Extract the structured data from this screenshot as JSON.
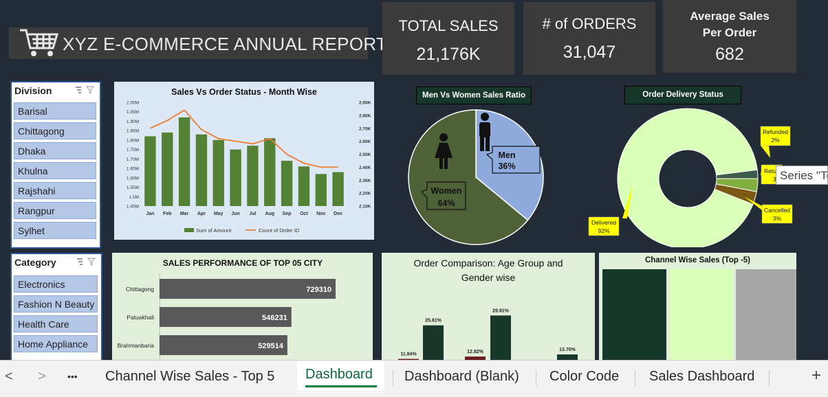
{
  "report": {
    "title": "XYZ E-COMMERCE ANNUAL REPORT",
    "icon": "shopping-cart-icon"
  },
  "kpis": [
    {
      "label": "TOTAL SALES",
      "value": "21,176K"
    },
    {
      "label": "# of ORDERS",
      "value": "31,047"
    },
    {
      "label_line1": "Average Sales",
      "label_line2": "Per Order",
      "value": "682"
    }
  ],
  "slicers": {
    "division": {
      "title": "Division",
      "items": [
        "Barisal",
        "Chittagong",
        "Dhaka",
        "Khulna",
        "Rajshahi",
        "Rangpur",
        "Sylhet"
      ]
    },
    "category": {
      "title": "Category",
      "items": [
        "Electronics",
        "Fashion N Beauty",
        "Health Care",
        "Home Appliance"
      ]
    }
  },
  "chart_data": [
    {
      "type": "bar",
      "title": "Sales Vs Order Status - Month Wise",
      "categories": [
        "Jan",
        "Feb",
        "Mar",
        "Apr",
        "May",
        "Jun",
        "Jul",
        "Aug",
        "Sep",
        "Oct",
        "Nov",
        "Dec"
      ],
      "series": [
        {
          "name": "Sum of Amount",
          "type": "bar",
          "axis": "left",
          "values": [
            1.82,
            1.84,
            1.92,
            1.83,
            1.8,
            1.75,
            1.77,
            1.81,
            1.69,
            1.66,
            1.62,
            1.63
          ]
        },
        {
          "name": "Count of Order ID",
          "type": "line",
          "axis": "right",
          "values": [
            2.7,
            2.76,
            2.84,
            2.69,
            2.62,
            2.6,
            2.58,
            2.62,
            2.5,
            2.43,
            2.4,
            2.4
          ]
        }
      ],
      "left_axis": {
        "ticks": [
          "1.45M",
          "1.5M",
          "1.55M",
          "1.60M",
          "1.65M",
          "1.70M",
          "1.75M",
          "1.80M",
          "1.85M",
          "1.90M",
          "1.95M",
          "2.00M"
        ],
        "ylim": [
          1.45,
          2.0
        ]
      },
      "right_axis": {
        "ticks": [
          "2.10K",
          "2.20K",
          "2.30K",
          "2.40K",
          "2.50K",
          "2.60K",
          "2.70K",
          "2.80K",
          "2.90K"
        ],
        "ylim": [
          2.1,
          2.9
        ]
      },
      "colors": {
        "bar": "#548235",
        "line": "#ed7d31"
      }
    },
    {
      "type": "pie",
      "title": "Men Vs Women Sales Ratio",
      "slices": [
        {
          "name": "Men",
          "value": 36,
          "label": "36%",
          "color": "#8faadc"
        },
        {
          "name": "Women",
          "value": 64,
          "label": "64%",
          "color": "#4e6137"
        }
      ]
    },
    {
      "type": "pie",
      "title": "Order Delivery Status",
      "slices": [
        {
          "name": "Delivered",
          "value": 92,
          "label": "92%",
          "color": "#d9ffb8"
        },
        {
          "name": "Refunded",
          "value": 2,
          "label": "2%",
          "color": "#3d5c4a"
        },
        {
          "name": "Returned",
          "value": 3,
          "label": "3",
          "color": "#82b040"
        },
        {
          "name": "Cancelled",
          "value": 3,
          "label": "3%",
          "color": "#7a5a14"
        }
      ],
      "callout_labels": {
        "refunded": "Refunded",
        "returned": "Retu",
        "cancelled": "Cancelled",
        "delivered": "Delivered"
      },
      "tooltip": "Series \"To"
    },
    {
      "type": "bar",
      "orientation": "horizontal",
      "title": "SALES PERFORMANCE OF TOP 05 CITY",
      "categories": [
        "Chittagong",
        "Patuakhali",
        "Brahmanbaria"
      ],
      "values": [
        729310,
        546231,
        529514
      ],
      "value_labels": [
        "729310",
        "546231",
        "529514"
      ],
      "xlim": [
        0,
        1000000
      ],
      "colors": {
        "bar": "#595959"
      }
    },
    {
      "type": "bar",
      "title": "Order Comparison: Age Group and Gender wise",
      "title_line1": "Order Comparison: Age Group and",
      "title_line2": "Gender wise",
      "bars": [
        {
          "value": 11.84,
          "label": "11.84%",
          "color": "#6b1a1f"
        },
        {
          "value": 25.81,
          "label": "25.81%",
          "color": "#17372b"
        },
        {
          "value": 12.82,
          "label": "12.82%",
          "color": "#6b1a1f"
        },
        {
          "value": 29.91,
          "label": "29.91%",
          "color": "#17372b"
        },
        {
          "value": 13.7,
          "label": "13.70%",
          "color": "#17372b"
        }
      ]
    },
    {
      "type": "bar",
      "title": "Channel Wise Sales (Top -5)",
      "colors": [
        "#17372b",
        "#d9ffb8",
        "#a6a6a6"
      ]
    }
  ],
  "tabs": {
    "nav_prev": "<",
    "nav_next": ">",
    "more": "•••",
    "items": [
      "Channel Wise Sales - Top 5",
      "Dashboard",
      "Dashboard (Blank)",
      "Color Code",
      "Sales Dashboard"
    ],
    "active_index": 1,
    "add": "+"
  }
}
